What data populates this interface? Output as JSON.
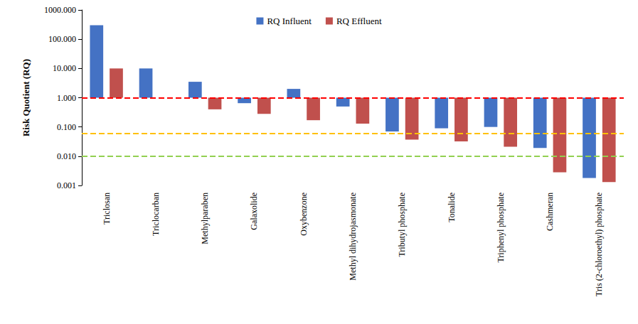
{
  "chart_data": {
    "type": "bar",
    "y_label": "Risk Quotient (RQ)",
    "categories": [
      "Triclosan",
      "Triclocarban",
      "Methylparaben",
      "Galaxolide",
      "Oxybenzone",
      "Methyl dihydrojasmonate",
      "Tributyl phosphate",
      "Tonalide",
      "Triphenyl phosphate",
      "Cashmeran",
      "Tris (2-chloroethyl) phosphate"
    ],
    "series": [
      {
        "name": "RQ Influent",
        "color": "#4472c4",
        "values": [
          300,
          10,
          3.5,
          0.65,
          2,
          0.5,
          0.07,
          0.09,
          0.1,
          0.019,
          0.0018
        ]
      },
      {
        "name": "RQ Effluent",
        "color": "#c0504d",
        "values": [
          10,
          null,
          0.4,
          0.28,
          0.17,
          0.13,
          0.037,
          0.032,
          0.021,
          0.0028,
          0.0013
        ]
      }
    ],
    "log": "y",
    "ylim": [
      0.001,
      1000
    ],
    "yticks": [
      {
        "value": 0.001,
        "label": "0.001"
      },
      {
        "value": 0.01,
        "label": "0.010"
      },
      {
        "value": 0.1,
        "label": "0.100"
      },
      {
        "value": 1,
        "label": "1.000"
      },
      {
        "value": 10,
        "label": "10.000"
      },
      {
        "value": 100,
        "label": "100.000"
      },
      {
        "value": 1000,
        "label": "1000.000"
      }
    ],
    "bar_base": 1,
    "reference_lines": [
      {
        "value": 1,
        "color": "#ff0000"
      },
      {
        "value": 0.06,
        "color": "#ffc000"
      },
      {
        "value": 0.005,
        "color": "#92d050"
      }
    ],
    "legend": "top",
    "grid": false
  }
}
